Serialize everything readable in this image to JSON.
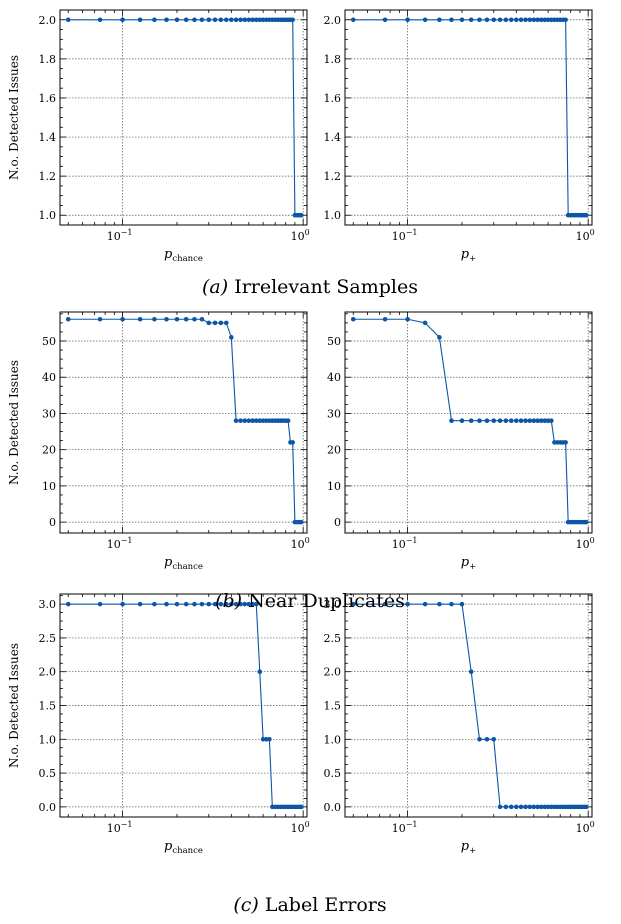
{
  "figure": {
    "ylabel": "N.o. Detected Issues",
    "xlabel_left_base": "p",
    "xlabel_left_sub": "chance",
    "xlabel_right_base": "p",
    "xlabel_right_sub": "+",
    "x_tick_labels": [
      "10",
      "−1",
      "10",
      "0"
    ]
  },
  "captions": [
    {
      "label": "(a)",
      "text": "Irrelevant Samples"
    },
    {
      "label": "(b)",
      "text": "Near Duplicates"
    },
    {
      "label": "(c)",
      "text": "Label Errors"
    }
  ],
  "colors": {
    "series": "#0d56a6"
  },
  "chart_data": [
    {
      "type": "line",
      "row": 0,
      "col": 0,
      "xscale": "log",
      "xlim": [
        0.045,
        1.05
      ],
      "ylim": [
        0.95,
        2.05
      ],
      "yticks": [
        1.0,
        1.2,
        1.4,
        1.6,
        1.8,
        2.0
      ],
      "ytick_labels": [
        "1.0",
        "1.2",
        "1.4",
        "1.6",
        "1.8",
        "2.0"
      ],
      "ylabel": "N.o. Detected Issues",
      "xlabel": "p_chance",
      "grid": true,
      "x": [
        0.05,
        0.075,
        0.1,
        0.125,
        0.15,
        0.175,
        0.2,
        0.225,
        0.25,
        0.275,
        0.3,
        0.325,
        0.35,
        0.375,
        0.4,
        0.425,
        0.45,
        0.475,
        0.5,
        0.525,
        0.55,
        0.575,
        0.6,
        0.625,
        0.65,
        0.675,
        0.7,
        0.725,
        0.75,
        0.775,
        0.8,
        0.825,
        0.85,
        0.875,
        0.9,
        0.925,
        0.95,
        0.975
      ],
      "y": [
        2,
        2,
        2,
        2,
        2,
        2,
        2,
        2,
        2,
        2,
        2,
        2,
        2,
        2,
        2,
        2,
        2,
        2,
        2,
        2,
        2,
        2,
        2,
        2,
        2,
        2,
        2,
        2,
        2,
        2,
        2,
        2,
        2,
        2,
        1,
        1,
        1,
        1
      ]
    },
    {
      "type": "line",
      "row": 0,
      "col": 1,
      "xscale": "log",
      "xlim": [
        0.045,
        1.05
      ],
      "ylim": [
        0.95,
        2.05
      ],
      "yticks": [
        1.0,
        1.2,
        1.4,
        1.6,
        1.8,
        2.0
      ],
      "ytick_labels": [
        "1.0",
        "1.2",
        "1.4",
        "1.6",
        "1.8",
        "2.0"
      ],
      "xlabel": "p_+",
      "grid": true,
      "x": [
        0.05,
        0.075,
        0.1,
        0.125,
        0.15,
        0.175,
        0.2,
        0.225,
        0.25,
        0.275,
        0.3,
        0.325,
        0.35,
        0.375,
        0.4,
        0.425,
        0.45,
        0.475,
        0.5,
        0.525,
        0.55,
        0.575,
        0.6,
        0.625,
        0.65,
        0.675,
        0.7,
        0.725,
        0.75,
        0.775,
        0.8,
        0.825,
        0.85,
        0.875,
        0.9,
        0.925,
        0.95,
        0.975
      ],
      "y": [
        2,
        2,
        2,
        2,
        2,
        2,
        2,
        2,
        2,
        2,
        2,
        2,
        2,
        2,
        2,
        2,
        2,
        2,
        2,
        2,
        2,
        2,
        2,
        2,
        2,
        2,
        2,
        2,
        2,
        1,
        1,
        1,
        1,
        1,
        1,
        1,
        1,
        1
      ]
    },
    {
      "type": "line",
      "row": 1,
      "col": 0,
      "xscale": "log",
      "xlim": [
        0.045,
        1.05
      ],
      "ylim": [
        -3,
        58
      ],
      "yticks": [
        0,
        10,
        20,
        30,
        40,
        50
      ],
      "ytick_labels": [
        "0",
        "10",
        "20",
        "30",
        "40",
        "50"
      ],
      "ylabel": "N.o. Detected Issues",
      "xlabel": "p_chance",
      "grid": true,
      "x": [
        0.05,
        0.075,
        0.1,
        0.125,
        0.15,
        0.175,
        0.2,
        0.225,
        0.25,
        0.275,
        0.3,
        0.325,
        0.35,
        0.375,
        0.4,
        0.425,
        0.45,
        0.475,
        0.5,
        0.525,
        0.55,
        0.575,
        0.6,
        0.625,
        0.65,
        0.675,
        0.7,
        0.725,
        0.75,
        0.775,
        0.8,
        0.825,
        0.85,
        0.875,
        0.9,
        0.925,
        0.95,
        0.975
      ],
      "y": [
        56,
        56,
        56,
        56,
        56,
        56,
        56,
        56,
        56,
        56,
        55,
        55,
        55,
        55,
        51,
        28,
        28,
        28,
        28,
        28,
        28,
        28,
        28,
        28,
        28,
        28,
        28,
        28,
        28,
        28,
        28,
        28,
        22,
        22,
        0,
        0,
        0,
        0
      ]
    },
    {
      "type": "line",
      "row": 1,
      "col": 1,
      "xscale": "log",
      "xlim": [
        0.045,
        1.05
      ],
      "ylim": [
        -3,
        58
      ],
      "yticks": [
        0,
        10,
        20,
        30,
        40,
        50
      ],
      "ytick_labels": [
        "0",
        "10",
        "20",
        "30",
        "40",
        "50"
      ],
      "xlabel": "p_+",
      "grid": true,
      "x": [
        0.05,
        0.075,
        0.1,
        0.125,
        0.15,
        0.175,
        0.2,
        0.225,
        0.25,
        0.275,
        0.3,
        0.325,
        0.35,
        0.375,
        0.4,
        0.425,
        0.45,
        0.475,
        0.5,
        0.525,
        0.55,
        0.575,
        0.6,
        0.625,
        0.65,
        0.675,
        0.7,
        0.725,
        0.75,
        0.775,
        0.8,
        0.825,
        0.85,
        0.875,
        0.9,
        0.925,
        0.95,
        0.975
      ],
      "y": [
        56,
        56,
        56,
        55,
        51,
        28,
        28,
        28,
        28,
        28,
        28,
        28,
        28,
        28,
        28,
        28,
        28,
        28,
        28,
        28,
        28,
        28,
        28,
        28,
        22,
        22,
        22,
        22,
        22,
        0,
        0,
        0,
        0,
        0,
        0,
        0,
        0,
        0
      ]
    },
    {
      "type": "line",
      "row": 2,
      "col": 0,
      "xscale": "log",
      "xlim": [
        0.045,
        1.05
      ],
      "ylim": [
        -0.15,
        3.15
      ],
      "yticks": [
        0.0,
        0.5,
        1.0,
        1.5,
        2.0,
        2.5,
        3.0
      ],
      "ytick_labels": [
        "0.0",
        "0.5",
        "1.0",
        "1.5",
        "2.0",
        "2.5",
        "3.0"
      ],
      "ylabel": "N.o. Detected Issues",
      "xlabel": "p_chance",
      "grid": true,
      "x": [
        0.05,
        0.075,
        0.1,
        0.125,
        0.15,
        0.175,
        0.2,
        0.225,
        0.25,
        0.275,
        0.3,
        0.325,
        0.35,
        0.375,
        0.4,
        0.425,
        0.45,
        0.475,
        0.5,
        0.525,
        0.55,
        0.575,
        0.6,
        0.625,
        0.65,
        0.675,
        0.7,
        0.725,
        0.75,
        0.775,
        0.8,
        0.825,
        0.85,
        0.875,
        0.9,
        0.925,
        0.95,
        0.975
      ],
      "y": [
        3,
        3,
        3,
        3,
        3,
        3,
        3,
        3,
        3,
        3,
        3,
        3,
        3,
        3,
        3,
        3,
        3,
        3,
        3,
        3,
        3,
        2,
        1,
        1,
        1,
        0,
        0,
        0,
        0,
        0,
        0,
        0,
        0,
        0,
        0,
        0,
        0,
        0
      ]
    },
    {
      "type": "line",
      "row": 2,
      "col": 1,
      "xscale": "log",
      "xlim": [
        0.045,
        1.05
      ],
      "ylim": [
        -0.15,
        3.15
      ],
      "yticks": [
        0.0,
        0.5,
        1.0,
        1.5,
        2.0,
        2.5,
        3.0
      ],
      "ytick_labels": [
        "0.0",
        "0.5",
        "1.0",
        "1.5",
        "2.0",
        "2.5",
        "3.0"
      ],
      "xlabel": "p_+",
      "grid": true,
      "x": [
        0.05,
        0.075,
        0.1,
        0.125,
        0.15,
        0.175,
        0.2,
        0.225,
        0.25,
        0.275,
        0.3,
        0.325,
        0.35,
        0.375,
        0.4,
        0.425,
        0.45,
        0.475,
        0.5,
        0.525,
        0.55,
        0.575,
        0.6,
        0.625,
        0.65,
        0.675,
        0.7,
        0.725,
        0.75,
        0.775,
        0.8,
        0.825,
        0.85,
        0.875,
        0.9,
        0.925,
        0.95,
        0.975
      ],
      "y": [
        3,
        3,
        3,
        3,
        3,
        3,
        3,
        2,
        1,
        1,
        1,
        0,
        0,
        0,
        0,
        0,
        0,
        0,
        0,
        0,
        0,
        0,
        0,
        0,
        0,
        0,
        0,
        0,
        0,
        0,
        0,
        0,
        0,
        0,
        0,
        0,
        0,
        0
      ]
    }
  ]
}
